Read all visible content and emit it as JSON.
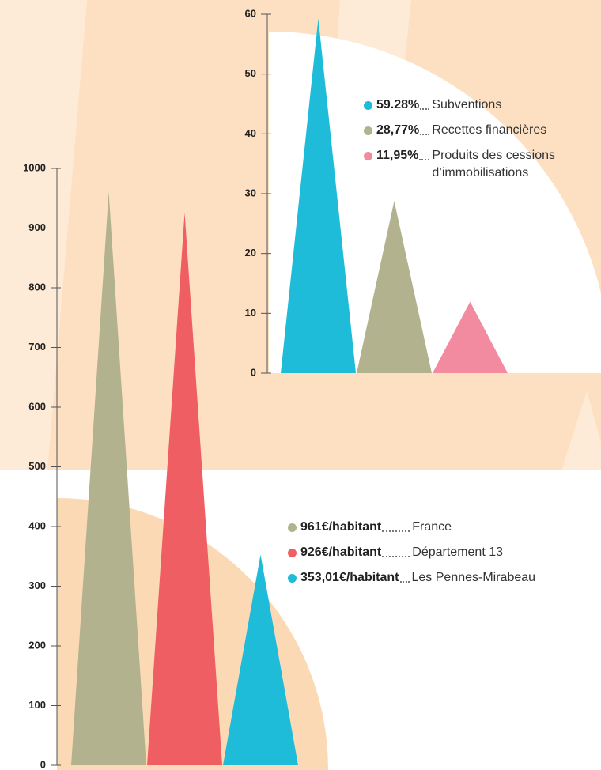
{
  "chart_data": [
    {
      "type": "triangle",
      "categories": [
        "Subventions",
        "Recettes financières",
        "Produits des cessions d’immobilisations"
      ],
      "values": [
        59.28,
        28.77,
        11.95
      ],
      "value_labels": [
        "59.28%",
        "28,77%",
        "11,95%"
      ],
      "colors": [
        "#1fbcd9",
        "#b3b28f",
        "#f28ba0"
      ],
      "ylim": [
        0,
        60
      ],
      "yticks": [
        0,
        10,
        20,
        30,
        40,
        50,
        60
      ]
    },
    {
      "type": "triangle",
      "categories": [
        "France",
        "Département 13",
        "Les Pennes-Mirabeau"
      ],
      "values": [
        961,
        926,
        353.01
      ],
      "value_labels": [
        "961€/habitant",
        "926€/habitant",
        "353,01€/habitant"
      ],
      "colors": [
        "#b3b28f",
        "#ef5e63",
        "#1fbcd9"
      ],
      "ylim": [
        0,
        1000
      ],
      "yticks": [
        0,
        100,
        200,
        300,
        400,
        500,
        600,
        700,
        800,
        900,
        1000
      ]
    }
  ]
}
